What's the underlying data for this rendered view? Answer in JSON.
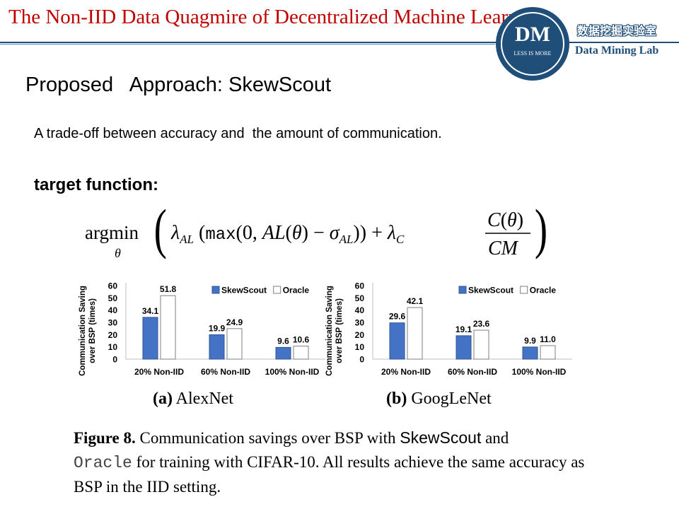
{
  "header": {
    "title": "The Non-IID Data Quagmire of Decentralized Machine Learning",
    "logo_letters": "DM",
    "logo_motto": "LESS IS MORE",
    "lab_name_cn": "数据挖掘实验室",
    "lab_name_en": "Data Mining Lab",
    "accent_color": "#c00000",
    "brand_color": "#1f4e79"
  },
  "slide": {
    "section_title": "Proposed   Approach: SkewScout",
    "subtitle": "A trade-off between accuracy and  the amount of communication.",
    "target_label": "target function:"
  },
  "formula": {
    "operator": "argmin",
    "variable": "θ",
    "expression": "argmin_θ ( λ_AL (max(0, AL(θ) − σ_AL)) + λ_C C(θ)/CM )"
  },
  "chart_data": [
    {
      "type": "bar",
      "ylabel": "Communication Saving over BSP (times)",
      "ylim": [
        0,
        60
      ],
      "yticks": [
        "0",
        "10",
        "20",
        "30",
        "40",
        "50",
        "60"
      ],
      "categories": [
        "20% Non-IID",
        "60% Non-IID",
        "100% Non-IID"
      ],
      "series": [
        {
          "name": "SkewScout",
          "values": [
            34.1,
            19.9,
            9.6
          ],
          "labels": [
            "34.1",
            "19.9",
            "9.6"
          ],
          "color": "#4472c4"
        },
        {
          "name": "Oracle",
          "values": [
            51.8,
            24.9,
            10.6
          ],
          "labels": [
            "51.8",
            "24.9",
            "10.6"
          ],
          "color": "#ffffff"
        }
      ],
      "legend": "top-right",
      "subcaption_label": "(a)",
      "subcaption_text": "AlexNet"
    },
    {
      "type": "bar",
      "ylabel": "Communication Saving over BSP (times)",
      "ylim": [
        0,
        60
      ],
      "yticks": [
        "0",
        "10",
        "20",
        "30",
        "40",
        "50",
        "60"
      ],
      "categories": [
        "20% Non-IID",
        "60% Non-IID",
        "100% Non-IID"
      ],
      "series": [
        {
          "name": "SkewScout",
          "values": [
            29.6,
            19.1,
            9.9
          ],
          "labels": [
            "29.6",
            "19.1",
            "9.9"
          ],
          "color": "#4472c4"
        },
        {
          "name": "Oracle",
          "values": [
            42.1,
            23.6,
            11.0
          ],
          "labels": [
            "42.1",
            "23.6",
            "11.0"
          ],
          "color": "#ffffff"
        }
      ],
      "legend": "top-right",
      "subcaption_label": "(b)",
      "subcaption_text": "GoogLeNet"
    }
  ],
  "caption": {
    "label": "Figure 8.",
    "text_1": " Communication savings over BSP with ",
    "skewscout": "SkewScout",
    "text_2": " and",
    "oracle": "Oracle",
    "text_3": " for training with CIFAR-10. All results achieve the same accuracy as BSP in the IID setting."
  }
}
